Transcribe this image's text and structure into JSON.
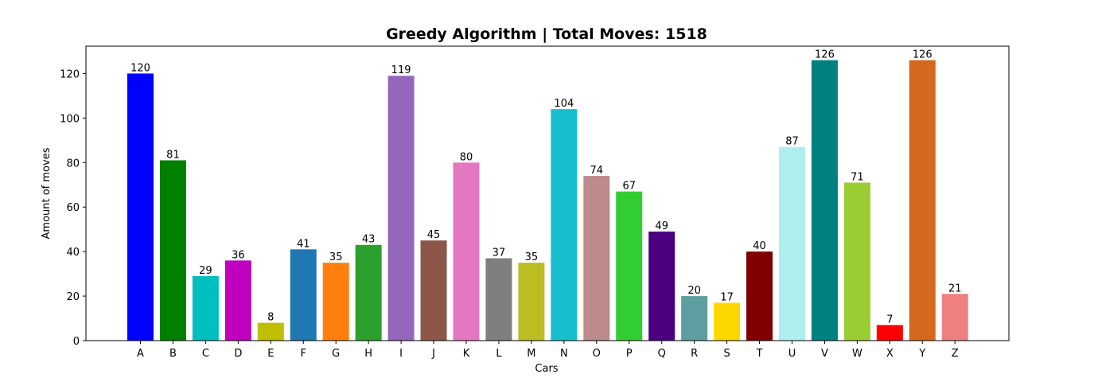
{
  "chart_data": {
    "type": "bar",
    "title": "Greedy Algorithm | Total Moves: 1518",
    "xlabel": "Cars",
    "ylabel": "Amount of moves",
    "ylim": [
      0,
      132.3
    ],
    "yticks": [
      0,
      20,
      40,
      60,
      80,
      100,
      120
    ],
    "categories": [
      "A",
      "B",
      "C",
      "D",
      "E",
      "F",
      "G",
      "H",
      "I",
      "J",
      "K",
      "L",
      "M",
      "N",
      "O",
      "P",
      "Q",
      "R",
      "S",
      "T",
      "U",
      "V",
      "W",
      "X",
      "Y",
      "Z"
    ],
    "values": [
      120,
      81,
      29,
      36,
      8,
      41,
      35,
      43,
      119,
      45,
      80,
      37,
      35,
      104,
      74,
      67,
      49,
      20,
      17,
      40,
      87,
      126,
      71,
      7,
      126,
      21
    ],
    "colors": [
      "#0000ff",
      "#008000",
      "#00bfbf",
      "#bf00bf",
      "#bfbf00",
      "#1f77b4",
      "#ff7f0e",
      "#2ca02c",
      "#9467bd",
      "#8c564b",
      "#e377c2",
      "#7f7f7f",
      "#bcbd22",
      "#17becf",
      "#bc8a8a",
      "#32cd32",
      "#4b0082",
      "#5f9ea0",
      "#ffd700",
      "#800000",
      "#afeeee",
      "#008080",
      "#9acd32",
      "#ff0000",
      "#d2691e",
      "#f08080"
    ],
    "grid": false,
    "data_labels": true
  }
}
